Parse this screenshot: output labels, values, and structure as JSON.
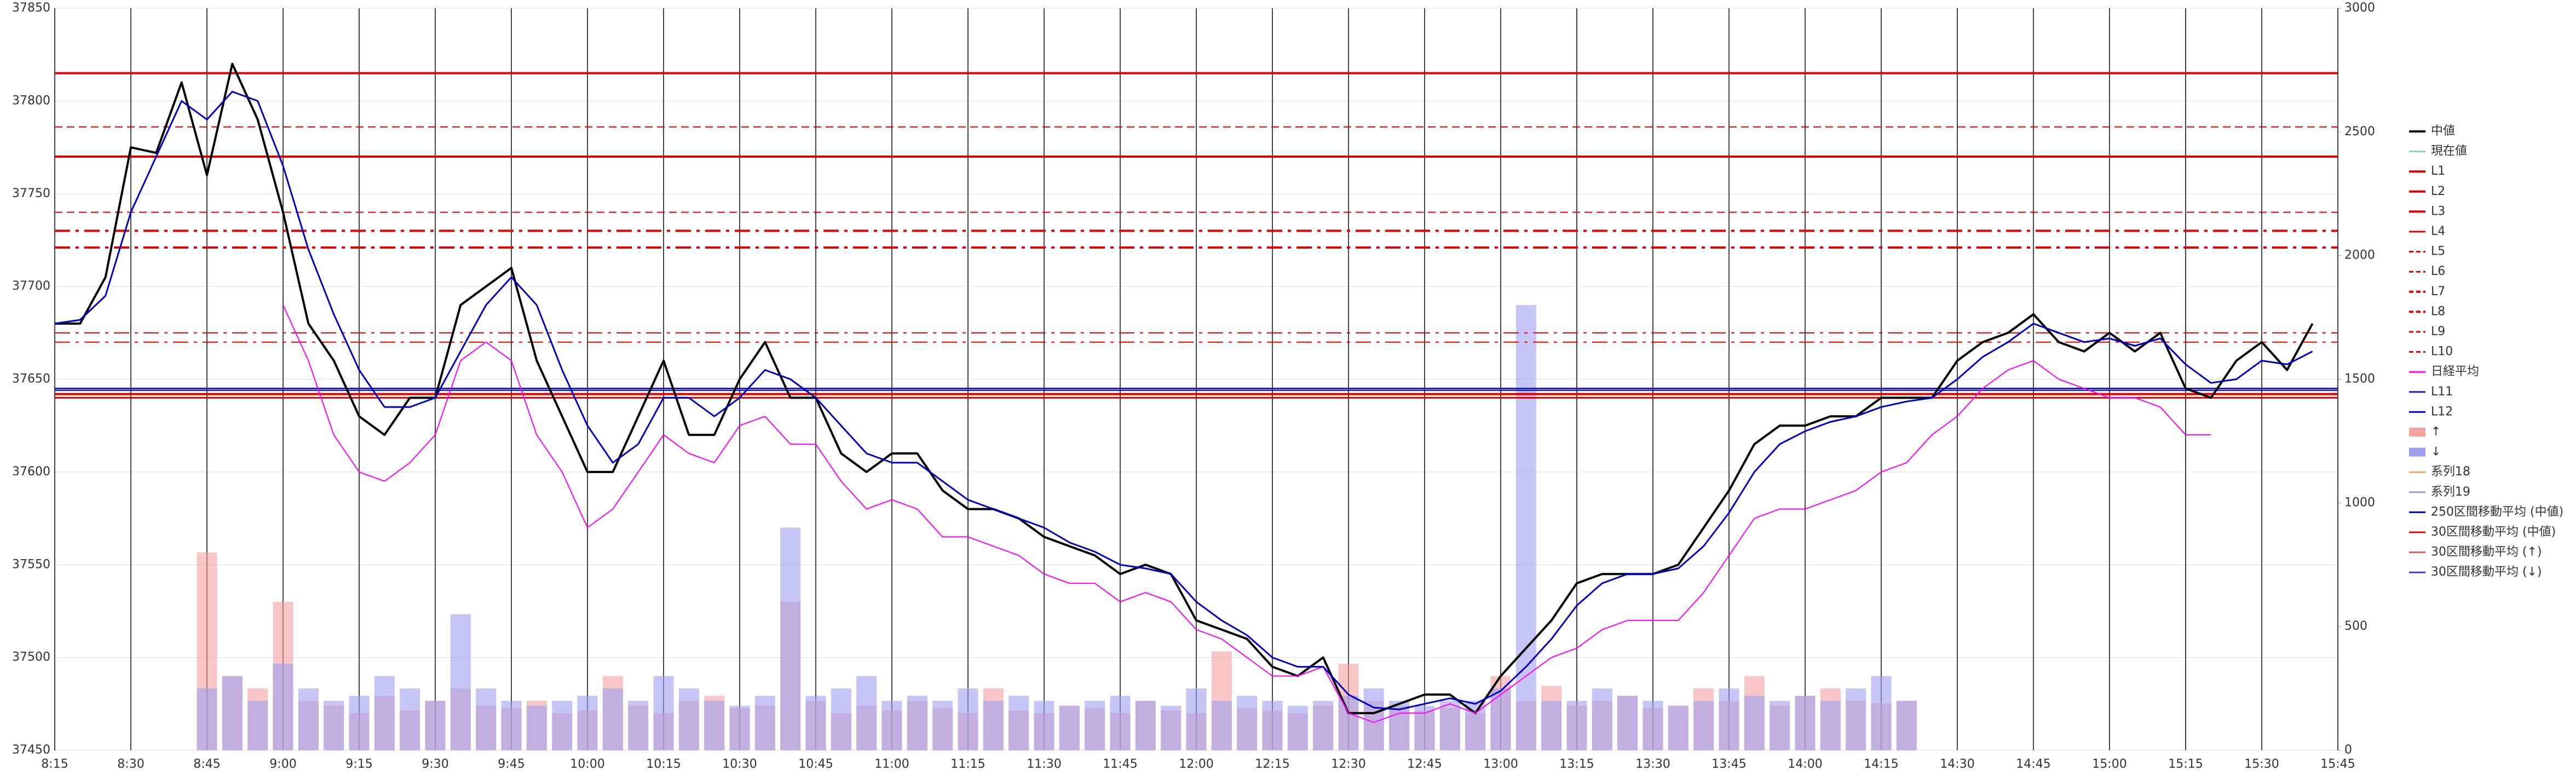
{
  "chart_data": {
    "type": "line",
    "x": [
      495,
      500,
      505,
      510,
      515,
      520,
      525,
      530,
      535,
      540,
      545,
      550,
      555,
      560,
      565,
      570,
      575,
      580,
      585,
      590,
      595,
      600,
      605,
      610,
      615,
      620,
      625,
      630,
      635,
      640,
      645,
      650,
      655,
      660,
      665,
      670,
      675,
      680,
      685,
      690,
      695,
      700,
      705,
      710,
      715,
      720,
      725,
      730,
      735,
      740,
      745,
      750,
      755,
      760,
      765,
      770,
      775,
      780,
      785,
      790,
      795,
      800,
      805,
      810,
      815,
      820,
      825,
      830,
      835,
      840,
      845,
      850,
      855,
      860,
      865,
      870,
      875,
      880,
      885,
      890,
      895,
      900,
      905,
      910,
      915,
      920,
      925,
      930,
      935,
      940
    ],
    "xlim": [
      495,
      945
    ],
    "xticks": [
      {
        "value": 495,
        "label": "8:15"
      },
      {
        "value": 510,
        "label": "8:30"
      },
      {
        "value": 525,
        "label": "8:45"
      },
      {
        "value": 540,
        "label": "9:00"
      },
      {
        "value": 555,
        "label": "9:15"
      },
      {
        "value": 570,
        "label": "9:30"
      },
      {
        "value": 585,
        "label": "9:45"
      },
      {
        "value": 600,
        "label": "10:00"
      },
      {
        "value": 615,
        "label": "10:15"
      },
      {
        "value": 630,
        "label": "10:30"
      },
      {
        "value": 645,
        "label": "10:45"
      },
      {
        "value": 660,
        "label": "11:00"
      },
      {
        "value": 675,
        "label": "11:15"
      },
      {
        "value": 690,
        "label": "11:30"
      },
      {
        "value": 705,
        "label": "11:45"
      },
      {
        "value": 720,
        "label": "12:00"
      },
      {
        "value": 735,
        "label": "12:15"
      },
      {
        "value": 750,
        "label": "12:30"
      },
      {
        "value": 765,
        "label": "12:45"
      },
      {
        "value": 780,
        "label": "13:00"
      },
      {
        "value": 795,
        "label": "13:15"
      },
      {
        "value": 810,
        "label": "13:30"
      },
      {
        "value": 825,
        "label": "13:45"
      },
      {
        "value": 840,
        "label": "14:00"
      },
      {
        "value": 855,
        "label": "14:15"
      },
      {
        "value": 870,
        "label": "14:30"
      },
      {
        "value": 885,
        "label": "14:45"
      },
      {
        "value": 900,
        "label": "15:00"
      },
      {
        "value": 915,
        "label": "15:15"
      },
      {
        "value": 930,
        "label": "15:30"
      },
      {
        "value": 945,
        "label": "15:45"
      }
    ],
    "ylim": [
      37450,
      37850
    ],
    "yticks": [
      37450,
      37500,
      37550,
      37600,
      37650,
      37700,
      37750,
      37800,
      37850
    ],
    "y2lim": [
      0,
      3000
    ],
    "y2ticks": [
      0,
      500,
      1000,
      1500,
      2000,
      2500,
      3000
    ],
    "grid": true,
    "legend": "right",
    "series": [
      {
        "name": "中値",
        "kind": "line",
        "color": "#000000",
        "width": 4,
        "values": [
          37680,
          37680,
          37705,
          37775,
          37772,
          37810,
          37760,
          37820,
          37790,
          37740,
          37680,
          37660,
          37630,
          37620,
          37640,
          37640,
          37690,
          37700,
          37710,
          37660,
          37630,
          37600,
          37600,
          37630,
          37660,
          37620,
          37620,
          37650,
          37670,
          37640,
          37640,
          37610,
          37600,
          37610,
          37610,
          37590,
          37580,
          37580,
          37575,
          37565,
          37560,
          37555,
          37545,
          37550,
          37545,
          37520,
          37515,
          37510,
          37495,
          37490,
          37500,
          37470,
          37470,
          37475,
          37480,
          37480,
          37470,
          37490,
          37505,
          37520,
          37540,
          37545,
          37545,
          37545,
          37550,
          37570,
          37590,
          37615,
          37625,
          37625,
          37630,
          37630,
          37640,
          37640,
          37640,
          37660,
          37670,
          37675,
          37685,
          37670,
          37665,
          37675,
          37665,
          37675,
          37645,
          37640,
          37660,
          37670,
          37655,
          37680
        ]
      },
      {
        "name": "現在値",
        "kind": "line",
        "color": "#7fd6c4",
        "width": 2
      },
      {
        "name": "L1",
        "kind": "hline",
        "color": "#e00000",
        "style": "solid",
        "width": 4,
        "value": 37815
      },
      {
        "name": "L2",
        "kind": "hline",
        "color": "#e00000",
        "style": "solid",
        "width": 4,
        "value": 37770
      },
      {
        "name": "L3",
        "kind": "hline",
        "color": "#e00000",
        "style": "solid",
        "width": 4,
        "value": 37642
      },
      {
        "name": "L4",
        "kind": "hline",
        "color": "#e00000",
        "style": "solid",
        "width": 3,
        "value": 37640
      },
      {
        "name": "L5",
        "kind": "hline",
        "color": "#e00000",
        "style": "dash",
        "width": 2,
        "value": 37786
      },
      {
        "name": "L6",
        "kind": "hline",
        "color": "#e00000",
        "style": "dash",
        "width": 2,
        "value": 37740
      },
      {
        "name": "L7",
        "kind": "hline",
        "color": "#e00000",
        "style": "dashdot",
        "width": 4,
        "value": 37730
      },
      {
        "name": "L8",
        "kind": "hline",
        "color": "#e00000",
        "style": "dashdot",
        "width": 4,
        "value": 37721
      },
      {
        "name": "L9",
        "kind": "hline",
        "color": "#e00000",
        "style": "dashdot",
        "width": 2,
        "value": 37675
      },
      {
        "name": "L10",
        "kind": "hline",
        "color": "#e00000",
        "style": "dashdot",
        "width": 2,
        "value": 37670
      },
      {
        "name": "日経平均",
        "kind": "line",
        "color": "#ff00ff",
        "width": 2,
        "values": [
          null,
          null,
          null,
          null,
          null,
          null,
          null,
          null,
          null,
          37690,
          37660,
          37620,
          37600,
          37595,
          37605,
          37620,
          37660,
          37670,
          37660,
          37620,
          37600,
          37570,
          37580,
          37600,
          37620,
          37610,
          37605,
          37625,
          37630,
          37615,
          37615,
          37595,
          37580,
          37585,
          37580,
          37565,
          37565,
          37560,
          37555,
          37545,
          37540,
          37540,
          37530,
          37535,
          37530,
          37515,
          37510,
          37500,
          37490,
          37490,
          37495,
          37470,
          37465,
          37470,
          37470,
          37475,
          37470,
          37480,
          37490,
          37500,
          37505,
          37515,
          37520,
          37520,
          37520,
          37535,
          37555,
          37575,
          37580,
          37580,
          37585,
          37590,
          37600,
          37605,
          37620,
          37630,
          37645,
          37655,
          37660,
          37650,
          37645,
          37640,
          37640,
          37635,
          37620,
          37620,
          null,
          null,
          null,
          null
        ]
      },
      {
        "name": "L11",
        "kind": "hline",
        "color": "#1f1fa0",
        "style": "solid",
        "width": 3,
        "value": 37645
      },
      {
        "name": "L12",
        "kind": "hline",
        "color": "#0000ff",
        "style": "solid",
        "width": 2,
        "value": 37644
      },
      {
        "name": "↑",
        "kind": "bar",
        "axis": "y2",
        "color": "#f4a0a0",
        "values": [
          0,
          0,
          0,
          0,
          0,
          0,
          800,
          300,
          250,
          600,
          200,
          180,
          150,
          220,
          160,
          200,
          250,
          180,
          170,
          200,
          150,
          160,
          300,
          180,
          150,
          200,
          220,
          170,
          180,
          600,
          200,
          150,
          180,
          160,
          200,
          170,
          150,
          250,
          160,
          150,
          180,
          170,
          150,
          200,
          160,
          150,
          400,
          170,
          160,
          150,
          180,
          350,
          200,
          180,
          160,
          170,
          150,
          300,
          200,
          260,
          180,
          200,
          220,
          170,
          180,
          250,
          200,
          300,
          180,
          220,
          250,
          200,
          190,
          200,
          0,
          0,
          0,
          0,
          0,
          0,
          0,
          0,
          0,
          0,
          0,
          0,
          0,
          0,
          0,
          0
        ]
      },
      {
        "name": "↓",
        "kind": "bar",
        "axis": "y2",
        "color": "#a0a0f0",
        "values": [
          0,
          0,
          0,
          0,
          0,
          0,
          250,
          300,
          200,
          350,
          250,
          200,
          220,
          300,
          250,
          200,
          550,
          250,
          200,
          180,
          200,
          220,
          250,
          200,
          300,
          250,
          200,
          180,
          220,
          900,
          220,
          250,
          300,
          200,
          220,
          200,
          250,
          200,
          220,
          200,
          180,
          200,
          220,
          200,
          180,
          250,
          200,
          220,
          200,
          180,
          200,
          220,
          250,
          200,
          180,
          200,
          200,
          250,
          1800,
          200,
          200,
          250,
          220,
          200,
          180,
          200,
          250,
          220,
          200,
          220,
          200,
          250,
          300,
          200,
          0,
          0,
          0,
          0,
          0,
          0,
          0,
          0,
          0,
          0,
          0,
          0,
          0,
          0,
          0,
          0
        ]
      },
      {
        "name": "系列18",
        "kind": "line",
        "color": "#f4a460",
        "width": 2
      },
      {
        "name": "系列19",
        "kind": "line",
        "color": "#9999dd",
        "width": 2
      },
      {
        "name": "250区間移動平均 (中値)",
        "kind": "line",
        "color": "#0000c0",
        "width": 3,
        "values": [
          37680,
          37682,
          37695,
          37740,
          37770,
          37800,
          37790,
          37805,
          37800,
          37765,
          37720,
          37685,
          37655,
          37635,
          37635,
          37640,
          37665,
          37690,
          37705,
          37690,
          37655,
          37625,
          37605,
          37615,
          37640,
          37640,
          37630,
          37640,
          37655,
          37650,
          37640,
          37625,
          37610,
          37605,
          37605,
          37595,
          37585,
          37580,
          37575,
          37570,
          37562,
          37557,
          37550,
          37548,
          37545,
          37530,
          37520,
          37512,
          37500,
          37495,
          37495,
          37480,
          37473,
          37472,
          37475,
          37478,
          37475,
          37482,
          37495,
          37510,
          37528,
          37540,
          37545,
          37545,
          37548,
          37560,
          37578,
          37600,
          37615,
          37622,
          37627,
          37630,
          37635,
          37638,
          37640,
          37650,
          37662,
          37670,
          37680,
          37675,
          37670,
          37672,
          37668,
          37672,
          37658,
          37648,
          37650,
          37660,
          37658,
          37665
        ]
      },
      {
        "name": "30区間移動平均 (中値)",
        "kind": "line",
        "color": "#e00000",
        "width": 2
      },
      {
        "name": "30区間移動平均 (↑)",
        "kind": "line",
        "color": "#e06060",
        "width": 2
      },
      {
        "name": "30区間移動平均 (↓)",
        "kind": "line",
        "color": "#4040e0",
        "width": 2
      }
    ]
  }
}
